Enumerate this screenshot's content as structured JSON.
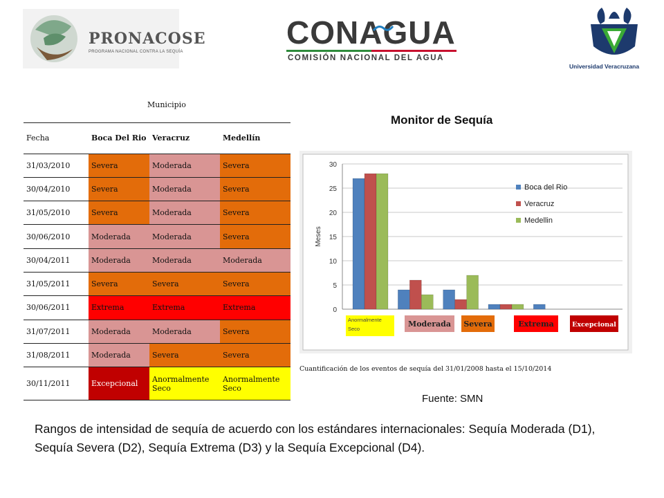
{
  "logos": {
    "pronacose": {
      "name": "PRONACOSE",
      "sub": "PROGRAMA NACIONAL CONTRA LA SEQUÍA"
    },
    "conagua": {
      "name": "CONAGUA",
      "sub": "COMISIÓN NACIONAL DEL AGUA"
    },
    "uv": {
      "sub": "Universidad Veracruzana"
    }
  },
  "table": {
    "header_group": "Municipio",
    "col_fecha": "Fecha",
    "col_boca": "Boca Del Rio",
    "col_veracruz": "Veracruz",
    "col_medellin": "Medellín",
    "rows": [
      {
        "fecha": "31/03/2010",
        "boca": "Severa",
        "veracruz": "Moderada",
        "medellin": "Severa"
      },
      {
        "fecha": "30/04/2010",
        "boca": "Severa",
        "veracruz": "Moderada",
        "medellin": "Severa"
      },
      {
        "fecha": "31/05/2010",
        "boca": "Severa",
        "veracruz": "Moderada",
        "medellin": "Severa"
      },
      {
        "fecha": "30/06/2010",
        "boca": "Moderada",
        "veracruz": "Moderada",
        "medellin": "Severa"
      },
      {
        "fecha": "30/04/2011",
        "boca": "Moderada",
        "veracruz": "Moderada",
        "medellin": "Moderada"
      },
      {
        "fecha": "31/05/2011",
        "boca": "Severa",
        "veracruz": "Severa",
        "medellin": "Severa"
      },
      {
        "fecha": "30/06/2011",
        "boca": "Extrema",
        "veracruz": "Extrema",
        "medellin": "Extrema"
      },
      {
        "fecha": "31/07/2011",
        "boca": "Moderada",
        "veracruz": "Moderada",
        "medellin": "Severa"
      },
      {
        "fecha": "31/08/2011",
        "boca": "Moderada",
        "veracruz": "Severa",
        "medellin": "Severa"
      },
      {
        "fecha": "30/11/2011",
        "boca": "Excepcional",
        "veracruz": "Anormalmente Seco",
        "medellin": "Anormalmente Seco"
      }
    ]
  },
  "monitor_title": "Monitor de Sequía",
  "chart_caption": "Cuantificación de los eventos de sequía del 31/01/2008 hasta el 15/10/2014",
  "fuente": "Fuente: SMN",
  "bottom_text": "Rangos de intensidad de sequía de acuerdo con los estándares internacionales: Sequía Moderada (D1), Sequía Severa (D2), Sequía Extrema (D3) y la Sequía Excepcional (D4).",
  "colors": {
    "boca": "#4f81bd",
    "veracruz": "#c0504d",
    "medellin": "#9bbb59",
    "anormal": "#ffff00",
    "moderada": "#d99594",
    "severa": "#e36c0a",
    "extrema": "#ff0000",
    "excepcional": "#c00000"
  },
  "chart_data": {
    "type": "bar",
    "categories": [
      "Anormalmente Seco",
      "Moderada",
      "Severa",
      "Extrema",
      "Excepcional"
    ],
    "series": [
      {
        "name": "Boca del Rio",
        "values": [
          27,
          4,
          4,
          1,
          1
        ]
      },
      {
        "name": "Veracruz",
        "values": [
          28,
          6,
          2,
          1,
          0
        ]
      },
      {
        "name": "Medellin",
        "values": [
          28,
          3,
          7,
          1,
          0
        ]
      }
    ],
    "ylabel": "Meses",
    "ylim": [
      0,
      30
    ],
    "yticks": [
      0,
      5,
      10,
      15,
      20,
      25,
      30
    ],
    "grid": true,
    "legend": "right"
  }
}
